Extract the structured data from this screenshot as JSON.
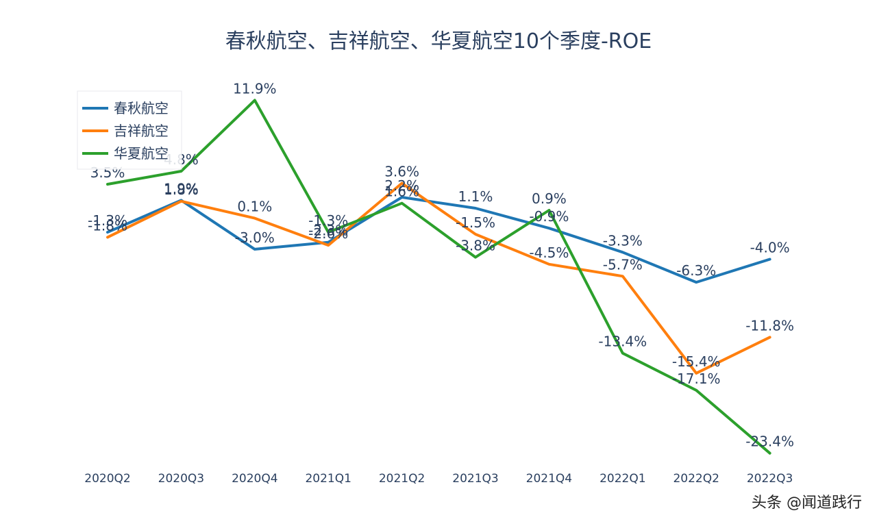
{
  "chart_data": {
    "type": "line",
    "title": "春秋航空、吉祥航空、华夏航空10个季度-ROE",
    "categories": [
      "2020Q2",
      "2020Q3",
      "2020Q4",
      "2021Q1",
      "2021Q2",
      "2021Q3",
      "2021Q4",
      "2022Q1",
      "2022Q2",
      "2022Q3"
    ],
    "series": [
      {
        "name": "春秋航空",
        "color": "#1f77b4",
        "values": [
          -1.3,
          1.9,
          -3.0,
          -2.3,
          2.2,
          1.1,
          -0.9,
          -3.3,
          -6.3,
          -4.0
        ],
        "labels": [
          "-1.3%",
          "1.9%",
          "-3.0%",
          "-2.3%",
          "2.2%",
          "1.1%",
          "-0.9%",
          "-3.3%",
          "-6.3%",
          "-4.0%"
        ]
      },
      {
        "name": "吉祥航空",
        "color": "#ff7f0e",
        "values": [
          -1.8,
          1.8,
          0.1,
          -2.6,
          3.6,
          -1.5,
          -4.5,
          -5.7,
          -15.4,
          -11.8
        ],
        "labels": [
          "-1.8%",
          "1.8%",
          "0.1%",
          "-2.6%",
          "3.6%",
          "-1.5%",
          "-4.5%",
          "-5.7%",
          "-15.4%",
          "-11.8%"
        ]
      },
      {
        "name": "华夏航空",
        "color": "#2ca02c",
        "values": [
          3.5,
          4.8,
          11.9,
          -1.3,
          1.6,
          -3.8,
          0.9,
          -13.4,
          -17.1,
          -23.4
        ],
        "labels": [
          "3.5%",
          "4.8%",
          "11.9%",
          "-1.3%",
          "1.6%",
          "-3.8%",
          "0.9%",
          "-13.4%",
          "-17.1%",
          "-23.4%"
        ]
      }
    ],
    "ylim": [
      -25,
      13
    ],
    "grid": false,
    "legend_position": "top-left"
  },
  "watermark": "头条 @闻道践行"
}
